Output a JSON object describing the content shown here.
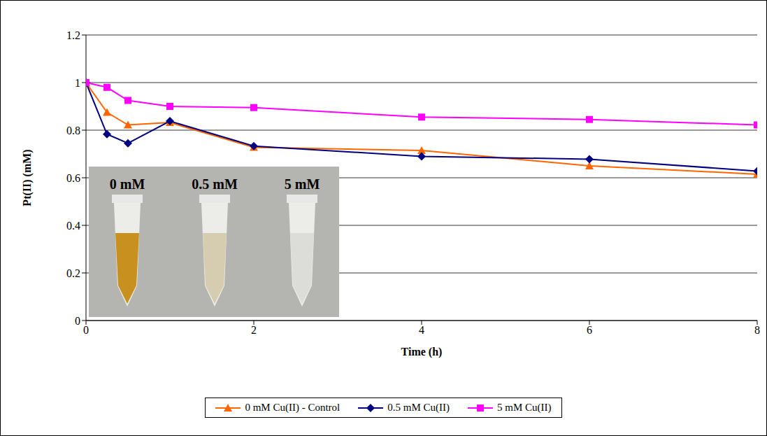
{
  "chart_data": {
    "type": "line",
    "x_label": "Time (h)",
    "y_label": "Pt(II) (mM)",
    "x": [
      0,
      0.25,
      0.5,
      1,
      2,
      4,
      6,
      8
    ],
    "xlim": [
      0,
      8
    ],
    "xticks": [
      0,
      2,
      4,
      6,
      8
    ],
    "ylim": [
      0,
      1.2
    ],
    "yticks": [
      0,
      0.2,
      0.4,
      0.6,
      0.8,
      1,
      1.2
    ],
    "grid": true,
    "legend": "bottom",
    "series": [
      {
        "name": "0 mM Cu(II) - Control",
        "color": "#ff6600",
        "marker": "triangle",
        "values": [
          1,
          0.875,
          0.822,
          0.832,
          0.728,
          0.715,
          0.65,
          0.615
        ]
      },
      {
        "name": "0.5 mM Cu(II)",
        "color": "#000080",
        "marker": "diamond",
        "values": [
          1,
          0.783,
          0.745,
          0.838,
          0.733,
          0.69,
          0.678,
          0.628
        ]
      },
      {
        "name": "5 mM Cu(II)",
        "color": "#ff00ff",
        "marker": "square",
        "values": [
          1,
          0.98,
          0.925,
          0.9,
          0.895,
          0.855,
          0.845,
          0.822
        ]
      }
    ],
    "inset_labels": [
      "0 mM",
      "0.5 mM",
      "5 mM"
    ]
  }
}
